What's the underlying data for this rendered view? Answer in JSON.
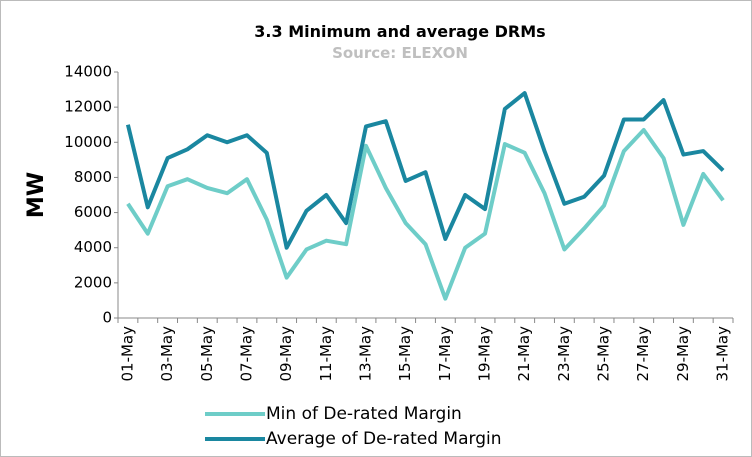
{
  "chart_data": {
    "type": "line",
    "title": "3.3 Minimum and average DRMs",
    "subtitle": "Source: ELEXON",
    "y_label": "MW",
    "categories": [
      "01-May",
      null,
      "03-May",
      null,
      "05-May",
      null,
      "07-May",
      null,
      "09-May",
      null,
      "11-May",
      null,
      "13-May",
      null,
      "15-May",
      null,
      "17-May",
      null,
      "19-May",
      null,
      "21-May",
      null,
      "23-May",
      null,
      "25-May",
      null,
      "27-May",
      null,
      "29-May",
      null,
      "31-May"
    ],
    "series": [
      {
        "name": "Min of De-rated Margin",
        "color": "#6ecdc8",
        "values": [
          6500,
          4800,
          7500,
          7900,
          7400,
          7100,
          7900,
          5600,
          2300,
          3900,
          4400,
          4200,
          9800,
          7400,
          5400,
          4200,
          1100,
          4000,
          4800,
          9900,
          9400,
          7100,
          3900,
          5100,
          6400,
          9500,
          10700,
          9100,
          5300,
          8200,
          6700
        ]
      },
      {
        "name": "Average of De-rated Margin",
        "color": "#1a87a0",
        "values": [
          11000,
          6300,
          9100,
          9600,
          10400,
          10000,
          10400,
          9400,
          4000,
          6100,
          7000,
          5400,
          10900,
          11200,
          7800,
          8300,
          4500,
          7000,
          6200,
          11900,
          12800,
          9500,
          6500,
          6900,
          8100,
          11300,
          11300,
          12400,
          9300,
          9500,
          8400
        ]
      }
    ],
    "ylim": [
      0,
      14000
    ],
    "yticks": [
      0,
      2000,
      4000,
      6000,
      8000,
      10000,
      12000,
      14000
    ],
    "grid": false,
    "legend": "bottom"
  }
}
